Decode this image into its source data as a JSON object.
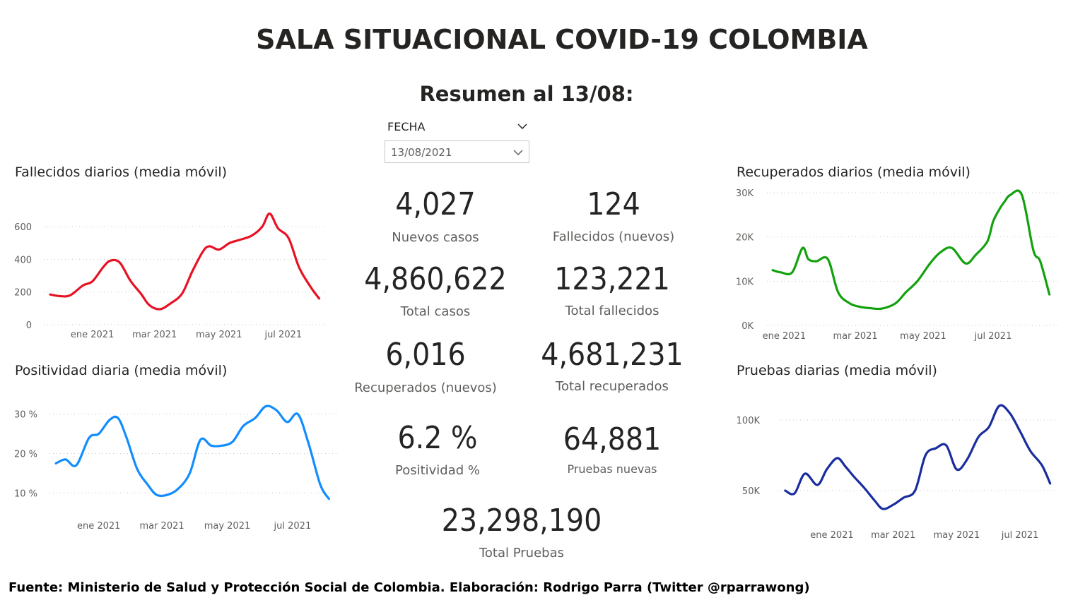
{
  "title": "SALA SITUACIONAL COVID-19 COLOMBIA",
  "subtitle": "Resumen al 13/08:",
  "slicer": {
    "label": "FECHA",
    "value": "13/08/2021"
  },
  "kpis": {
    "nuevos_casos": {
      "value": "4,027",
      "label": "Nuevos casos"
    },
    "fallecidos_nuevos": {
      "value": "124",
      "label": "Fallecidos (nuevos)"
    },
    "total_casos": {
      "value": "4,860,622",
      "label": "Total casos"
    },
    "total_fallecidos": {
      "value": "123,221",
      "label": "Total fallecidos"
    },
    "recuperados_nuevos": {
      "value": "6,016",
      "label": "Recuperados (nuevos)"
    },
    "total_recuperados": {
      "value": "4,681,231",
      "label": "Total recuperados"
    },
    "positividad": {
      "value": "6.2 %",
      "label": "Positividad %"
    },
    "pruebas_nuevas": {
      "value": "64,881",
      "label": "Pruebas nuevas"
    },
    "total_pruebas": {
      "value": "23,298,190",
      "label": "Total Pruebas"
    }
  },
  "footer": "Fuente: Ministerio de Salud y Protección Social de Colombia. Elaboración: Rodrigo Parra (Twitter @rparrawong)",
  "chart_data": [
    {
      "id": "fallecidos",
      "type": "line",
      "title": "Fallecidos diarios (media móvil)",
      "color": "#e81123",
      "x_ticks": [
        "ene 2021",
        "mar 2021",
        "may 2021",
        "jul 2021"
      ],
      "y_ticks": [
        "0",
        "200",
        "400",
        "600"
      ],
      "ylim": [
        0,
        700
      ],
      "grid": true,
      "x": [
        "2020-12-01",
        "2020-12-10",
        "2020-12-20",
        "2021-01-01",
        "2021-01-10",
        "2021-01-20",
        "2021-01-27",
        "2021-02-05",
        "2021-02-15",
        "2021-02-25",
        "2021-03-05",
        "2021-03-15",
        "2021-03-25",
        "2021-04-05",
        "2021-04-15",
        "2021-04-25",
        "2021-05-01",
        "2021-05-10",
        "2021-05-20",
        "2021-05-30",
        "2021-06-10",
        "2021-06-20",
        "2021-06-27",
        "2021-07-05",
        "2021-07-15",
        "2021-07-25",
        "2021-08-05",
        "2021-08-13"
      ],
      "values": [
        185,
        175,
        180,
        240,
        265,
        350,
        392,
        380,
        270,
        190,
        120,
        95,
        130,
        190,
        330,
        450,
        480,
        460,
        500,
        520,
        545,
        600,
        680,
        590,
        530,
        350,
        230,
        160
      ]
    },
    {
      "id": "positividad",
      "type": "line",
      "title": "Positividad diaria (media móvil)",
      "color": "#118dff",
      "x_ticks": [
        "ene 2021",
        "mar 2021",
        "may 2021",
        "jul 2021"
      ],
      "y_ticks": [
        "10 %",
        "20 %",
        "30 %"
      ],
      "ylim": [
        7,
        33
      ],
      "grid": true,
      "x": [
        "2020-12-01",
        "2020-12-10",
        "2020-12-20",
        "2021-01-01",
        "2021-01-10",
        "2021-01-20",
        "2021-01-28",
        "2021-02-05",
        "2021-02-15",
        "2021-02-25",
        "2021-03-05",
        "2021-03-15",
        "2021-03-25",
        "2021-04-05",
        "2021-04-15",
        "2021-04-25",
        "2021-05-05",
        "2021-05-15",
        "2021-05-25",
        "2021-06-05",
        "2021-06-15",
        "2021-06-25",
        "2021-07-05",
        "2021-07-15",
        "2021-07-25",
        "2021-08-05",
        "2021-08-13"
      ],
      "values": [
        17.5,
        18.5,
        17,
        24,
        25,
        28.5,
        29,
        24,
        16,
        12,
        9.5,
        9.5,
        11,
        15,
        23.5,
        22,
        22,
        23,
        27,
        29,
        32,
        31,
        28,
        30,
        22.5,
        12,
        8.5
      ]
    },
    {
      "id": "recuperados",
      "type": "line",
      "title": "Recuperados diarios (media móvil)",
      "color": "#13a10e",
      "x_ticks": [
        "ene 2021",
        "mar 2021",
        "may 2021",
        "jul 2021"
      ],
      "y_ticks": [
        "0K",
        "10K",
        "20K",
        "30K"
      ],
      "ylim": [
        0,
        30000
      ],
      "grid": true,
      "x": [
        "2020-12-15",
        "2020-12-22",
        "2021-01-01",
        "2021-01-10",
        "2021-01-15",
        "2021-01-22",
        "2021-02-01",
        "2021-02-10",
        "2021-02-20",
        "2021-03-01",
        "2021-03-10",
        "2021-03-20",
        "2021-04-01",
        "2021-04-10",
        "2021-04-20",
        "2021-05-01",
        "2021-05-10",
        "2021-05-20",
        "2021-06-01",
        "2021-06-10",
        "2021-06-20",
        "2021-06-25",
        "2021-07-01",
        "2021-07-05",
        "2021-07-10",
        "2021-07-20",
        "2021-07-30",
        "2021-08-05",
        "2021-08-13"
      ],
      "values": [
        12500,
        12000,
        12000,
        17500,
        15000,
        14500,
        15000,
        7500,
        5000,
        4200,
        3900,
        3800,
        5000,
        7500,
        10000,
        14000,
        16500,
        17500,
        14000,
        16000,
        19000,
        23500,
        26500,
        28000,
        29500,
        29500,
        17000,
        14500,
        7000
      ]
    },
    {
      "id": "pruebas",
      "type": "line",
      "title": "Pruebas diarias (media móvil)",
      "color": "#1a2d9e",
      "x_ticks": [
        "ene 2021",
        "mar 2021",
        "may 2021",
        "jul 2021"
      ],
      "y_ticks": [
        "50K",
        "100K"
      ],
      "ylim": [
        30000,
        115000
      ],
      "grid": true,
      "x": [
        "2020-12-01",
        "2020-12-10",
        "2020-12-20",
        "2021-01-01",
        "2021-01-10",
        "2021-01-20",
        "2021-01-28",
        "2021-02-05",
        "2021-02-15",
        "2021-02-25",
        "2021-03-05",
        "2021-03-15",
        "2021-03-25",
        "2021-04-05",
        "2021-04-15",
        "2021-04-25",
        "2021-05-05",
        "2021-05-15",
        "2021-05-25",
        "2021-06-05",
        "2021-06-15",
        "2021-06-25",
        "2021-07-05",
        "2021-07-15",
        "2021-07-25",
        "2021-08-05",
        "2021-08-13"
      ],
      "values": [
        50000,
        48000,
        62000,
        54000,
        65000,
        73000,
        67000,
        60000,
        52000,
        43000,
        37000,
        40000,
        45000,
        50000,
        75000,
        80000,
        82000,
        65000,
        72000,
        88000,
        95000,
        110000,
        105000,
        92000,
        78000,
        68000,
        55000
      ]
    }
  ]
}
